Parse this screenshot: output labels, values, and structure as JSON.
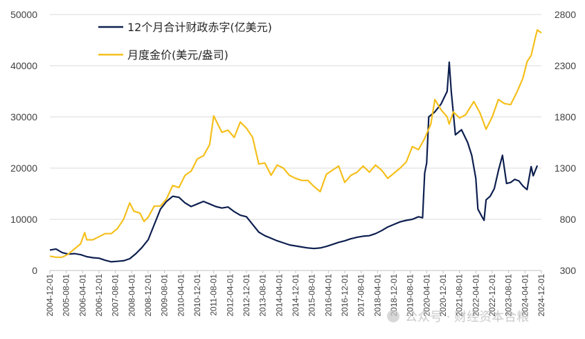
{
  "chart_data": {
    "type": "line",
    "title": "",
    "left_axis": {
      "min": 0,
      "max": 50000,
      "ticks": [
        "0",
        "10000",
        "20000",
        "30000",
        "40000",
        "50000"
      ]
    },
    "right_axis": {
      "min": 300,
      "max": 2800,
      "ticks": [
        "300",
        "800",
        "1300",
        "1800",
        "2300",
        "2800"
      ]
    },
    "x_tick_labels": [
      "2004-12-01",
      "2005-08-01",
      "2006-04-01",
      "2006-12-01",
      "2007-08-01",
      "2008-04-01",
      "2008-12-01",
      "2009-08-01",
      "2010-04-01",
      "2010-12-01",
      "2011-08-01",
      "2012-04-01",
      "2012-12-01",
      "2013-08-01",
      "2014-04-01",
      "2014-12-01",
      "2015-08-01",
      "2016-04-01",
      "2016-12-01",
      "2017-08-01",
      "2018-04-01",
      "2018-12-01",
      "2019-08-01",
      "2020-04-01",
      "2020-12-01",
      "2021-08-01",
      "2022-04-01",
      "2022-12-01",
      "2023-08-01",
      "2024-04-01",
      "2024-12-01"
    ],
    "grid": "horizontal",
    "legend_position": "top-left",
    "series": [
      {
        "name": "12个月合计财政赤字(亿美元)",
        "axis": "left",
        "color": "#0d1f4f",
        "points": [
          [
            "2004-12",
            4000
          ],
          [
            "2005-03",
            4200
          ],
          [
            "2005-06",
            3500
          ],
          [
            "2005-09",
            3200
          ],
          [
            "2005-12",
            3300
          ],
          [
            "2006-03",
            3100
          ],
          [
            "2006-06",
            2700
          ],
          [
            "2006-09",
            2500
          ],
          [
            "2006-12",
            2400
          ],
          [
            "2007-03",
            2000
          ],
          [
            "2007-06",
            1700
          ],
          [
            "2007-09",
            1800
          ],
          [
            "2007-12",
            1900
          ],
          [
            "2008-03",
            2300
          ],
          [
            "2008-06",
            3300
          ],
          [
            "2008-09",
            4500
          ],
          [
            "2008-12",
            6000
          ],
          [
            "2009-03",
            9000
          ],
          [
            "2009-06",
            12000
          ],
          [
            "2009-09",
            13500
          ],
          [
            "2009-12",
            14500
          ],
          [
            "2010-03",
            14300
          ],
          [
            "2010-06",
            13200
          ],
          [
            "2010-09",
            12500
          ],
          [
            "2010-12",
            13000
          ],
          [
            "2011-03",
            13500
          ],
          [
            "2011-06",
            13000
          ],
          [
            "2011-09",
            12500
          ],
          [
            "2011-12",
            12200
          ],
          [
            "2012-03",
            12400
          ],
          [
            "2012-06",
            11500
          ],
          [
            "2012-09",
            10800
          ],
          [
            "2012-12",
            10500
          ],
          [
            "2013-03",
            9000
          ],
          [
            "2013-06",
            7500
          ],
          [
            "2013-09",
            6800
          ],
          [
            "2013-12",
            6300
          ],
          [
            "2014-03",
            5800
          ],
          [
            "2014-06",
            5400
          ],
          [
            "2014-09",
            5000
          ],
          [
            "2014-12",
            4800
          ],
          [
            "2015-03",
            4600
          ],
          [
            "2015-06",
            4400
          ],
          [
            "2015-09",
            4300
          ],
          [
            "2015-12",
            4400
          ],
          [
            "2016-03",
            4700
          ],
          [
            "2016-06",
            5100
          ],
          [
            "2016-09",
            5500
          ],
          [
            "2016-12",
            5800
          ],
          [
            "2017-03",
            6200
          ],
          [
            "2017-06",
            6500
          ],
          [
            "2017-09",
            6700
          ],
          [
            "2017-12",
            6800
          ],
          [
            "2018-03",
            7200
          ],
          [
            "2018-06",
            7800
          ],
          [
            "2018-09",
            8500
          ],
          [
            "2018-12",
            9000
          ],
          [
            "2019-03",
            9500
          ],
          [
            "2019-06",
            9800
          ],
          [
            "2019-09",
            10000
          ],
          [
            "2019-12",
            10500
          ],
          [
            "2020-02",
            10300
          ],
          [
            "2020-03",
            19000
          ],
          [
            "2020-04",
            21000
          ],
          [
            "2020-05",
            30000
          ],
          [
            "2020-08",
            31000
          ],
          [
            "2020-11",
            32500
          ],
          [
            "2021-02",
            35000
          ],
          [
            "2021-03",
            40700
          ],
          [
            "2021-04",
            35000
          ],
          [
            "2021-06",
            26500
          ],
          [
            "2021-09",
            27500
          ],
          [
            "2021-12",
            25000
          ],
          [
            "2022-02",
            22500
          ],
          [
            "2022-04",
            18000
          ],
          [
            "2022-05",
            12000
          ],
          [
            "2022-07",
            10500
          ],
          [
            "2022-08",
            9800
          ],
          [
            "2022-09",
            13800
          ],
          [
            "2022-11",
            14500
          ],
          [
            "2023-01",
            16000
          ],
          [
            "2023-03",
            19500
          ],
          [
            "2023-05",
            22500
          ],
          [
            "2023-07",
            17000
          ],
          [
            "2023-09",
            17200
          ],
          [
            "2023-11",
            17800
          ],
          [
            "2024-01",
            17500
          ],
          [
            "2024-03",
            16500
          ],
          [
            "2024-05",
            15800
          ],
          [
            "2024-07",
            20300
          ],
          [
            "2024-08",
            18500
          ],
          [
            "2024-10",
            20500
          ]
        ]
      },
      {
        "name": "月度金价(美元/盎司)",
        "axis": "right",
        "color": "#f5bf1a",
        "points": [
          [
            "2004-12",
            440
          ],
          [
            "2005-03",
            430
          ],
          [
            "2005-06",
            430
          ],
          [
            "2005-09",
            460
          ],
          [
            "2005-12",
            510
          ],
          [
            "2006-03",
            560
          ],
          [
            "2006-05",
            670
          ],
          [
            "2006-06",
            600
          ],
          [
            "2006-09",
            600
          ],
          [
            "2006-12",
            630
          ],
          [
            "2007-03",
            660
          ],
          [
            "2007-06",
            660
          ],
          [
            "2007-09",
            710
          ],
          [
            "2007-12",
            800
          ],
          [
            "2008-03",
            960
          ],
          [
            "2008-05",
            880
          ],
          [
            "2008-08",
            860
          ],
          [
            "2008-10",
            780
          ],
          [
            "2008-12",
            820
          ],
          [
            "2009-03",
            930
          ],
          [
            "2009-06",
            930
          ],
          [
            "2009-09",
            1000
          ],
          [
            "2009-12",
            1130
          ],
          [
            "2010-03",
            1110
          ],
          [
            "2010-06",
            1230
          ],
          [
            "2010-09",
            1270
          ],
          [
            "2010-12",
            1390
          ],
          [
            "2011-03",
            1420
          ],
          [
            "2011-06",
            1530
          ],
          [
            "2011-08",
            1810
          ],
          [
            "2011-09",
            1770
          ],
          [
            "2011-12",
            1650
          ],
          [
            "2012-03",
            1670
          ],
          [
            "2012-06",
            1600
          ],
          [
            "2012-09",
            1750
          ],
          [
            "2012-12",
            1690
          ],
          [
            "2013-03",
            1600
          ],
          [
            "2013-06",
            1340
          ],
          [
            "2013-09",
            1350
          ],
          [
            "2013-12",
            1230
          ],
          [
            "2014-03",
            1330
          ],
          [
            "2014-06",
            1300
          ],
          [
            "2014-09",
            1230
          ],
          [
            "2014-12",
            1200
          ],
          [
            "2015-03",
            1180
          ],
          [
            "2015-06",
            1180
          ],
          [
            "2015-09",
            1120
          ],
          [
            "2015-12",
            1070
          ],
          [
            "2016-03",
            1240
          ],
          [
            "2016-06",
            1280
          ],
          [
            "2016-09",
            1320
          ],
          [
            "2016-12",
            1160
          ],
          [
            "2017-03",
            1230
          ],
          [
            "2017-06",
            1260
          ],
          [
            "2017-09",
            1320
          ],
          [
            "2017-12",
            1260
          ],
          [
            "2018-03",
            1330
          ],
          [
            "2018-06",
            1280
          ],
          [
            "2018-09",
            1200
          ],
          [
            "2018-12",
            1250
          ],
          [
            "2019-03",
            1300
          ],
          [
            "2019-06",
            1360
          ],
          [
            "2019-09",
            1510
          ],
          [
            "2019-12",
            1480
          ],
          [
            "2020-03",
            1590
          ],
          [
            "2020-06",
            1730
          ],
          [
            "2020-08",
            1970
          ],
          [
            "2020-11",
            1870
          ],
          [
            "2021-02",
            1800
          ],
          [
            "2021-03",
            1730
          ],
          [
            "2021-05",
            1850
          ],
          [
            "2021-08",
            1790
          ],
          [
            "2021-11",
            1820
          ],
          [
            "2022-03",
            1950
          ],
          [
            "2022-06",
            1840
          ],
          [
            "2022-09",
            1680
          ],
          [
            "2022-12",
            1800
          ],
          [
            "2023-03",
            1970
          ],
          [
            "2023-06",
            1930
          ],
          [
            "2023-09",
            1920
          ],
          [
            "2023-12",
            2040
          ],
          [
            "2024-03",
            2180
          ],
          [
            "2024-05",
            2340
          ],
          [
            "2024-07",
            2400
          ],
          [
            "2024-09",
            2570
          ],
          [
            "2024-10",
            2650
          ],
          [
            "2024-12",
            2620
          ]
        ]
      }
    ]
  },
  "watermark": {
    "text": "公众号 · 财经资本合粮"
  }
}
